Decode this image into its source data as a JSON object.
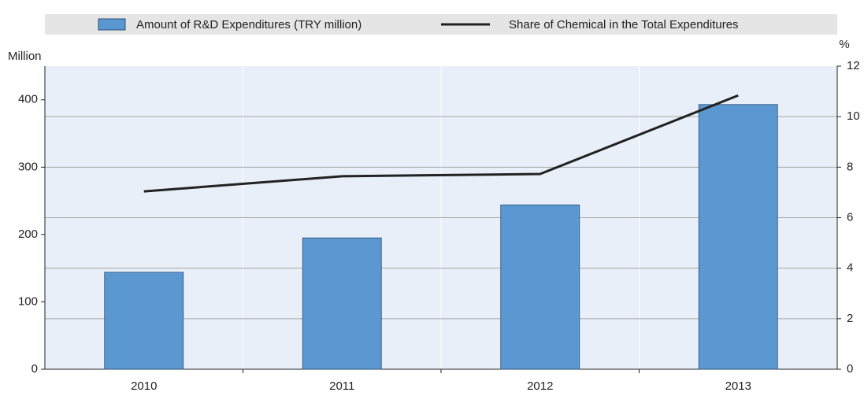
{
  "chart_data": {
    "type": "bar_line",
    "categories": [
      "2010",
      "2011",
      "2012",
      "2013"
    ],
    "series": [
      {
        "name": "Amount of R&D Expenditures (TRY million)",
        "type": "bar",
        "color": "#5b97d1",
        "values": [
          144,
          195,
          244,
          393
        ]
      },
      {
        "name": "Share of Chemical in the Total Expenditures",
        "type": "line",
        "color": "#222222",
        "axis": "y2",
        "values": [
          7.04,
          7.64,
          7.73,
          10.84
        ]
      }
    ],
    "ylabel": "Million",
    "y2label": "%",
    "ylim": [
      0,
      450
    ],
    "yticks": [
      0,
      100,
      200,
      300,
      400
    ],
    "y2lim": [
      0,
      12
    ],
    "y2ticks": [
      0,
      2,
      4,
      6,
      8,
      10,
      12
    ],
    "grid": true,
    "legend": "top"
  }
}
